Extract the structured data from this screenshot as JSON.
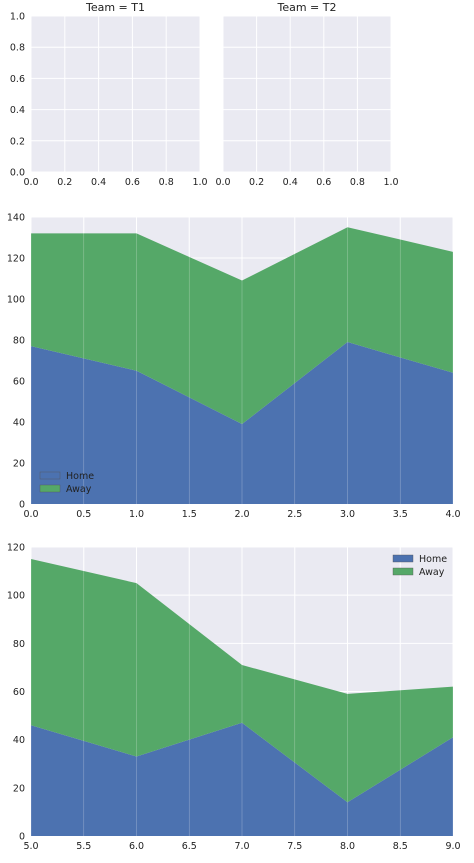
{
  "colors": {
    "background": "#eaeaf2",
    "grid": "#ffffff",
    "home": "#4c72b0",
    "away": "#55a868"
  },
  "chart_data": [
    {
      "type": "facet-grid-empty",
      "facets": [
        {
          "title": "Team = T1",
          "xlim": [
            0,
            1
          ],
          "ylim": [
            0,
            1
          ],
          "x_ticks": [
            "0.0",
            "0.2",
            "0.4",
            "0.6",
            "0.8",
            "1.0"
          ],
          "y_ticks": [
            "0.0",
            "0.2",
            "0.4",
            "0.6",
            "0.8",
            "1.0"
          ]
        },
        {
          "title": "Team = T2",
          "xlim": [
            0,
            1
          ],
          "ylim": [
            0,
            1
          ],
          "x_ticks": [
            "0.0",
            "0.2",
            "0.4",
            "0.6",
            "0.8",
            "1.0"
          ],
          "y_ticks": []
        }
      ],
      "grid": true
    },
    {
      "type": "area",
      "stacked": true,
      "x": [
        0,
        1,
        2,
        3,
        4
      ],
      "xlim": [
        0,
        4
      ],
      "ylim": [
        0,
        140
      ],
      "x_ticks": [
        "0.0",
        "0.5",
        "1.0",
        "1.5",
        "2.0",
        "2.5",
        "3.0",
        "3.5",
        "4.0"
      ],
      "y_ticks": [
        "0",
        "20",
        "40",
        "60",
        "80",
        "100",
        "120",
        "140"
      ],
      "series": [
        {
          "name": "Home",
          "values": [
            77,
            65,
            39,
            79,
            64
          ]
        },
        {
          "name": "Away",
          "values": [
            55,
            67,
            70,
            56,
            59
          ]
        }
      ],
      "legend": "lower-left",
      "grid": true
    },
    {
      "type": "area",
      "stacked": true,
      "x": [
        5,
        6,
        7,
        8,
        9
      ],
      "xlim": [
        5,
        9
      ],
      "ylim": [
        0,
        120
      ],
      "x_ticks": [
        "5.0",
        "5.5",
        "6.0",
        "6.5",
        "7.0",
        "7.5",
        "8.0",
        "8.5",
        "9.0"
      ],
      "y_ticks": [
        "0",
        "20",
        "40",
        "60",
        "80",
        "100",
        "120"
      ],
      "series": [
        {
          "name": "Home",
          "values": [
            46,
            33,
            47,
            14,
            41
          ]
        },
        {
          "name": "Away",
          "values": [
            69,
            72,
            24,
            45,
            21
          ]
        }
      ],
      "legend": "upper-right",
      "grid": true
    }
  ]
}
